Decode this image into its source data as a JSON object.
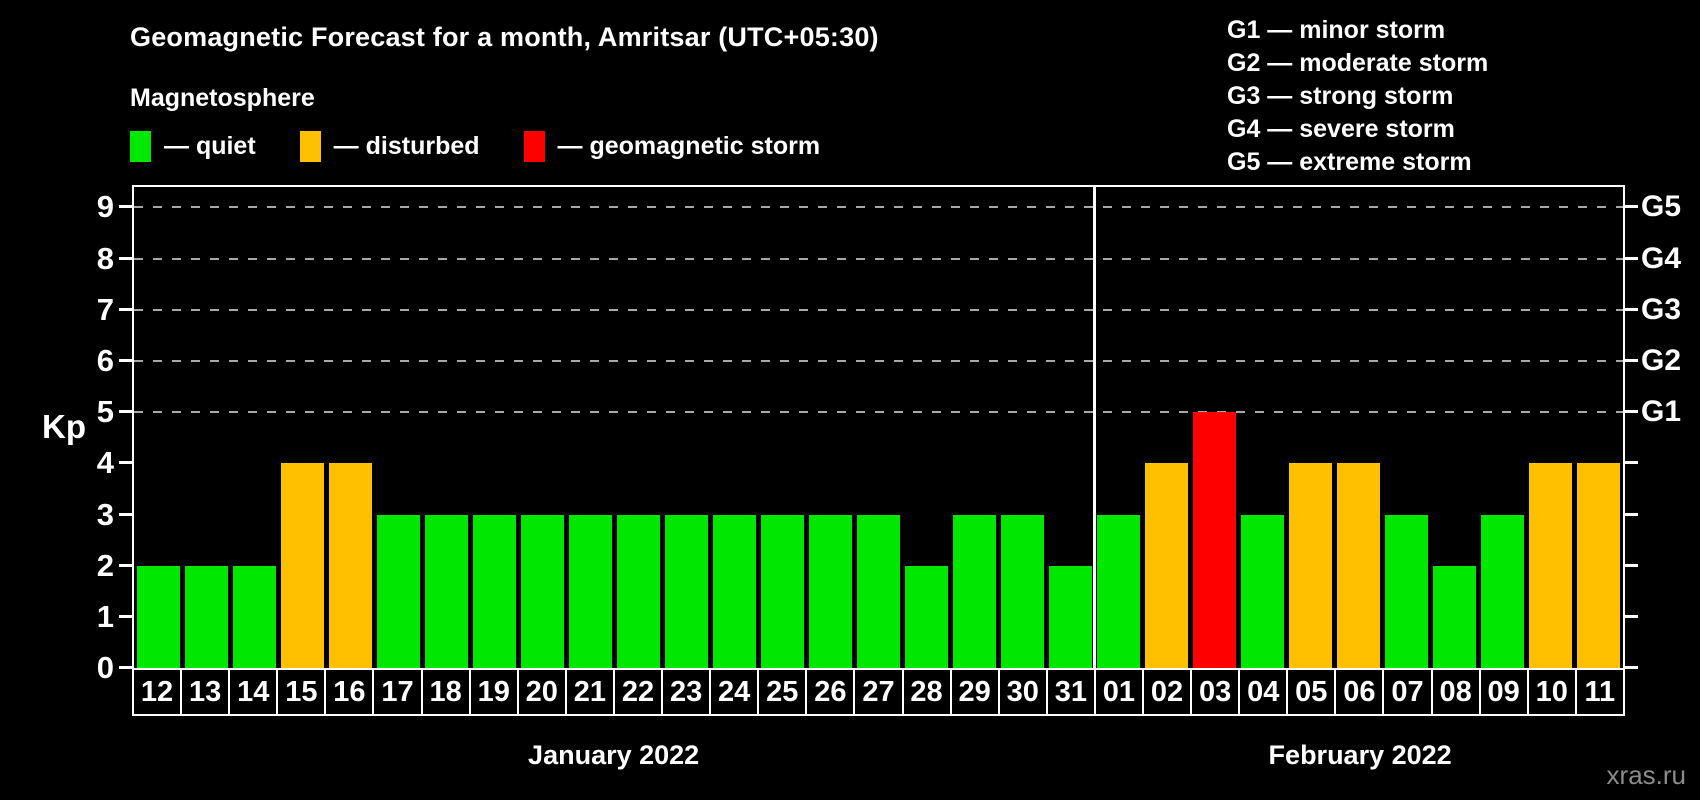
{
  "title": "Geomagnetic Forecast for a month, Amritsar (UTC+05:30)",
  "subtitle": "Magnetosphere",
  "watermark": "xras.ru",
  "legend": [
    {
      "key": "quiet",
      "text": "— quiet",
      "color": "#00e800"
    },
    {
      "key": "disturbed",
      "text": "— disturbed",
      "color": "#ffc000"
    },
    {
      "key": "geomagnetic-storm",
      "text": "— geomagnetic storm",
      "color": "#ff0000"
    }
  ],
  "storm_scale": [
    {
      "code": "G1",
      "text": "G1 — minor storm",
      "kp": 5
    },
    {
      "code": "G2",
      "text": "G2 — moderate storm",
      "kp": 6
    },
    {
      "code": "G3",
      "text": "G3 — strong storm",
      "kp": 7
    },
    {
      "code": "G4",
      "text": "G4 — severe storm",
      "kp": 8
    },
    {
      "code": "G5",
      "text": "G5 — extreme storm",
      "kp": 9
    }
  ],
  "chart_data": {
    "type": "bar",
    "title": "Geomagnetic Forecast for a month, Amritsar (UTC+05:30)",
    "xlabel": "",
    "ylabel": "Kp",
    "ylim": [
      0,
      9.4
    ],
    "yticks": [
      0,
      1,
      2,
      3,
      4,
      5,
      6,
      7,
      8,
      9
    ],
    "gridline_levels": [
      5,
      6,
      7,
      8,
      9
    ],
    "grid": "dashed horizontal lines at storm levels G1-G5 only",
    "legend_position": "top-left",
    "categories": [
      "12",
      "13",
      "14",
      "15",
      "16",
      "17",
      "18",
      "19",
      "20",
      "21",
      "22",
      "23",
      "24",
      "25",
      "26",
      "27",
      "28",
      "29",
      "30",
      "31",
      "01",
      "02",
      "03",
      "04",
      "05",
      "06",
      "07",
      "08",
      "09",
      "10",
      "11"
    ],
    "values": [
      2,
      2,
      2,
      4,
      4,
      3,
      3,
      3,
      3,
      3,
      3,
      3,
      3,
      3,
      3,
      3,
      2,
      3,
      3,
      2,
      3,
      4,
      5,
      3,
      4,
      4,
      3,
      2,
      3,
      4,
      4
    ],
    "months": [
      {
        "label": "January 2022",
        "days": 20
      },
      {
        "label": "February 2022",
        "days": 11
      }
    ],
    "palette": {
      "quiet": "#00e800",
      "disturbed": "#ffc000",
      "storm": "#ff0000"
    },
    "color_thresholds": {
      "quiet_max": 3,
      "disturbed": 4,
      "storm_min": 5
    },
    "right_axis_labels": [
      {
        "kp": 5,
        "label": "G1"
      },
      {
        "kp": 6,
        "label": "G2"
      },
      {
        "kp": 7,
        "label": "G3"
      },
      {
        "kp": 8,
        "label": "G4"
      },
      {
        "kp": 9,
        "label": "G5"
      }
    ]
  }
}
